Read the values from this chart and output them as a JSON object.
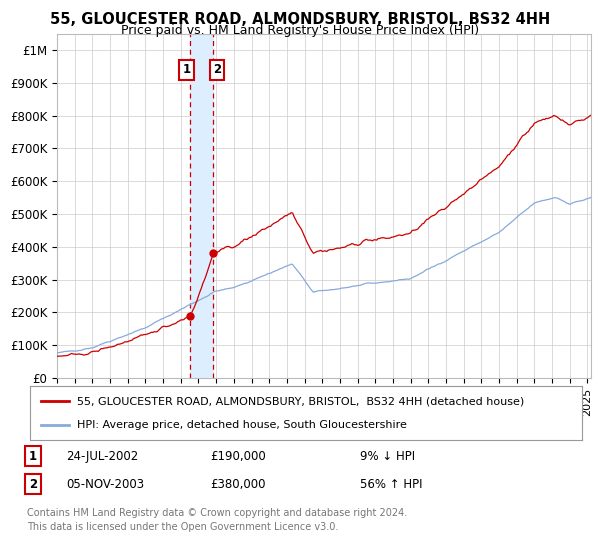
{
  "title": "55, GLOUCESTER ROAD, ALMONDSBURY, BRISTOL, BS32 4HH",
  "subtitle": "Price paid vs. HM Land Registry's House Price Index (HPI)",
  "legend_line1": "55, GLOUCESTER ROAD, ALMONDSBURY, BRISTOL,  BS32 4HH (detached house)",
  "legend_line2": "HPI: Average price, detached house, South Gloucestershire",
  "footnote_line1": "Contains HM Land Registry data © Crown copyright and database right 2024.",
  "footnote_line2": "This data is licensed under the Open Government Licence v3.0.",
  "t1_label": "1",
  "t2_label": "2",
  "t1_date_str": "24-JUL-2002",
  "t2_date_str": "05-NOV-2003",
  "t1_price_str": "£190,000",
  "t2_price_str": "£380,000",
  "t1_price": 190000,
  "t2_price": 380000,
  "t1_hpi_str": "9% ↓ HPI",
  "t2_hpi_str": "56% ↑ HPI",
  "t1_x": 2002.542,
  "t2_x": 2003.833,
  "sale_color": "#cc0000",
  "hpi_color": "#88aadd",
  "vline_color": "#cc0000",
  "vshade_color": "#ddeeff",
  "grid_color": "#cccccc",
  "bg_color": "#ffffff",
  "xmin": 1995.0,
  "xmax": 2025.2,
  "ymin": 0,
  "ymax": 1050000,
  "yticks": [
    0,
    100000,
    200000,
    300000,
    400000,
    500000,
    600000,
    700000,
    800000,
    900000,
    1000000
  ],
  "ylabels": [
    "£0",
    "£100K",
    "£200K",
    "£300K",
    "£400K",
    "£500K",
    "£600K",
    "£700K",
    "£800K",
    "£900K",
    "£1M"
  ],
  "xtick_start": 1995,
  "xtick_end": 2025
}
